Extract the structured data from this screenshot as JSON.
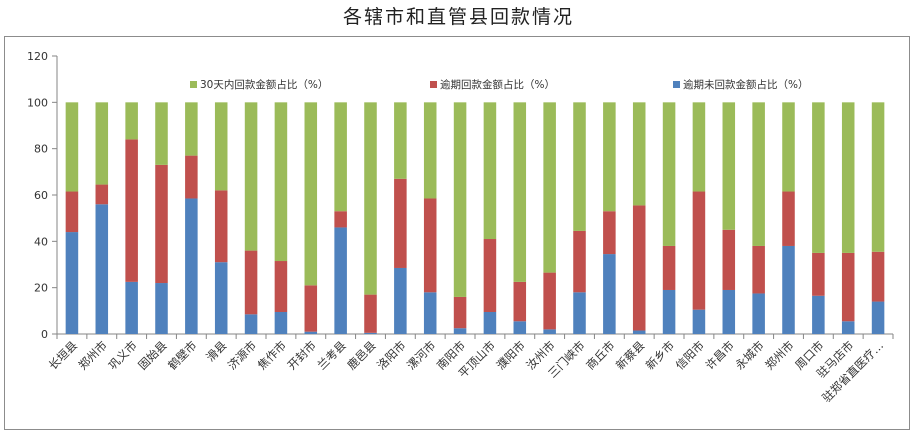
{
  "page_title": "各辖市和直管县回款情况",
  "chart_data": {
    "type": "bar",
    "stacked": true,
    "title": "",
    "xlabel": "",
    "ylabel": "",
    "ylim": [
      0,
      120
    ],
    "yticks": [
      0,
      20,
      40,
      60,
      80,
      100,
      120
    ],
    "grid": false,
    "legend_position": "top",
    "categories": [
      "长垣县",
      "郑州市",
      "巩义市",
      "固始县",
      "鹤壁市",
      "滑县",
      "济源市",
      "焦作市",
      "开封市",
      "兰考县",
      "鹿邑县",
      "洛阳市",
      "漯河市",
      "南阳市",
      "平顶山市",
      "濮阳市",
      "汝州市",
      "三门峡市",
      "商丘市",
      "新蔡县",
      "新乡市",
      "信阳市",
      "许昌市",
      "永城市",
      "郑州市",
      "周口市",
      "驻马店市",
      "驻郑省直医疗…"
    ],
    "series": [
      {
        "name": "逾期未回款金额占比（%）",
        "color": "#4F81BD",
        "values": [
          44,
          56,
          22.5,
          22,
          58.5,
          31,
          8.5,
          9.5,
          1,
          46,
          0.5,
          28.5,
          18,
          2.5,
          9.5,
          5.5,
          2,
          18,
          34.5,
          1.5,
          19,
          10.5,
          19,
          17.5,
          38,
          16.5,
          5.5,
          14
        ]
      },
      {
        "name": "逾期回款金额占比（%）",
        "color": "#C0504D",
        "values": [
          17.5,
          8.5,
          61.5,
          51,
          18.5,
          31,
          27.5,
          22,
          20,
          7,
          16.5,
          38.5,
          40.5,
          13.5,
          31.5,
          17,
          24.5,
          26.5,
          18.5,
          54,
          19,
          51,
          26,
          20.5,
          23.5,
          18.5,
          29.5,
          21.5
        ]
      },
      {
        "name": "30天内回款金额占比（%）",
        "color": "#9BBB59",
        "values": [
          38.5,
          35.5,
          16,
          27,
          23,
          38,
          64,
          68.5,
          79,
          47,
          83,
          33,
          41.5,
          84,
          59,
          77.5,
          73.5,
          55.5,
          47,
          44.5,
          62,
          38.5,
          55,
          62,
          38.5,
          65,
          65,
          64.5
        ]
      }
    ],
    "legend_order": [
      2,
      1,
      0
    ]
  }
}
